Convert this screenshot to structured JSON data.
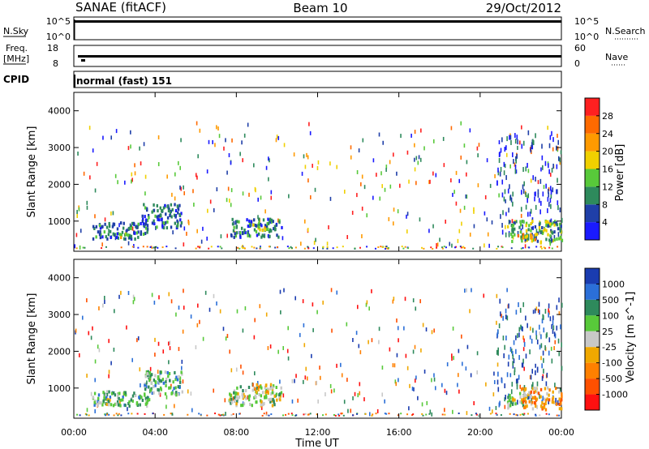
{
  "header": {
    "station": "SANAE (fitACF)",
    "beam": "Beam 10",
    "date": "29/Oct/2012"
  },
  "status_panel": {
    "nsky_label": "N.Sky",
    "nsearch_label": "N.Search",
    "freq_label": "Freq.",
    "freq_unit": "[MHz]",
    "nave_label": "Nave",
    "cpid_label": "CPID",
    "cpid_value": "normal (fast) 151",
    "nsky_ticks": [
      "10^5",
      "10^0"
    ],
    "nsearch_ticks": [
      "10^5",
      "10^0"
    ],
    "freq_ticks": [
      "18",
      "8"
    ],
    "nave_ticks": [
      "60",
      "0"
    ]
  },
  "chart_data": [
    {
      "type": "heatmap",
      "name": "power",
      "ylabel": "Slant Range [km]",
      "ylim": [
        180,
        4500
      ],
      "yticks": [
        "1000",
        "2000",
        "3000",
        "4000"
      ],
      "xlim": [
        0,
        24
      ],
      "colorbar": {
        "label": "Power [dB]",
        "ticks": [
          "4",
          "8",
          "12",
          "16",
          "20",
          "24",
          "28"
        ],
        "colors": [
          "#1a1aff",
          "#1f3fa8",
          "#2e8a5c",
          "#58c93a",
          "#f0d000",
          "#ff9a00",
          "#ff6a00",
          "#ff2020"
        ]
      },
      "regions": [
        {
          "t0": 0.9,
          "t1": 3.6,
          "r0": 550,
          "r1": 1000,
          "level": 2
        },
        {
          "t0": 2.2,
          "t1": 2.9,
          "r0": 560,
          "r1": 700,
          "level": 4
        },
        {
          "t0": 3.3,
          "t1": 5.3,
          "r0": 850,
          "r1": 1500,
          "level": 2
        },
        {
          "t0": 7.7,
          "t1": 10.2,
          "r0": 600,
          "r1": 1100,
          "level": 2
        },
        {
          "t0": 8.6,
          "t1": 9.6,
          "r0": 750,
          "r1": 950,
          "level": 4
        },
        {
          "t0": 21.3,
          "t1": 24.0,
          "r0": 450,
          "r1": 1050,
          "level": 3
        },
        {
          "t0": 21.8,
          "t1": 22.8,
          "r0": 500,
          "r1": 700,
          "level": 5
        }
      ]
    },
    {
      "type": "heatmap",
      "name": "velocity",
      "ylabel": "Slant Range [km]",
      "xlabel": "Time UT",
      "ylim": [
        180,
        4500
      ],
      "yticks": [
        "1000",
        "2000",
        "3000",
        "4000"
      ],
      "xlim": [
        0,
        24
      ],
      "xticks": [
        "00:00",
        "04:00",
        "08:00",
        "12:00",
        "16:00",
        "20:00",
        "00:00"
      ],
      "colorbar": {
        "label": "Velocity [m s^-1]",
        "ticks": [
          "1000",
          "500",
          "100",
          "25",
          "-25",
          "-100",
          "-500",
          "-1000"
        ],
        "colors": [
          "#1a3cb0",
          "#2b6fd8",
          "#2e8a5c",
          "#58c93a",
          "#c8c8c8",
          "#f0a800",
          "#ff8000",
          "#ff5000",
          "#ff1010"
        ]
      },
      "regions": [
        {
          "t0": 0.9,
          "t1": 3.7,
          "r0": 550,
          "r1": 950,
          "level": 3
        },
        {
          "t0": 0.9,
          "t1": 1.8,
          "r0": 580,
          "r1": 800,
          "level": 4
        },
        {
          "t0": 3.4,
          "t1": 5.3,
          "r0": 850,
          "r1": 1500,
          "level": 3
        },
        {
          "t0": 7.6,
          "t1": 10.2,
          "r0": 550,
          "r1": 1100,
          "level": 4
        },
        {
          "t0": 8.8,
          "t1": 9.8,
          "r0": 900,
          "r1": 1150,
          "level": 5
        },
        {
          "t0": 21.3,
          "t1": 22.2,
          "r0": 500,
          "r1": 900,
          "level": 4
        },
        {
          "t0": 22.0,
          "t1": 24.0,
          "r0": 450,
          "r1": 1050,
          "level": 6
        }
      ]
    }
  ]
}
